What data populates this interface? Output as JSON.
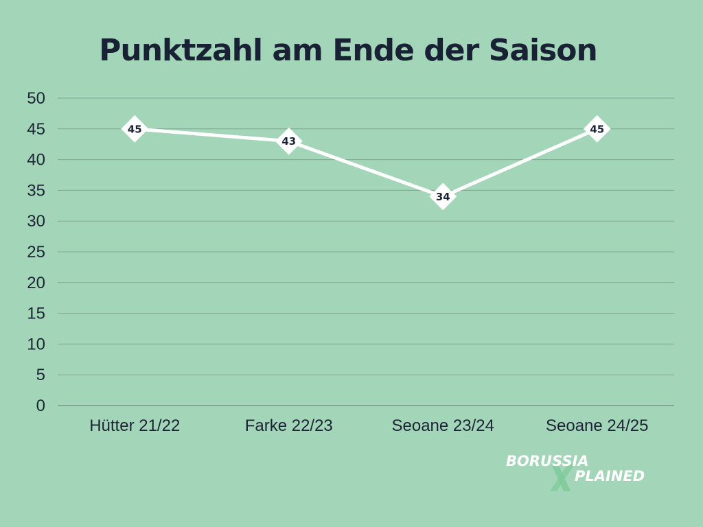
{
  "chart_data": {
    "type": "line",
    "title": "Punktzahl am Ende der Saison",
    "categories": [
      "Hütter 21/22",
      "Farke 22/23",
      "Seoane 23/24",
      "Seoane 24/25"
    ],
    "values": [
      45,
      43,
      34,
      45
    ],
    "data_labels": [
      "45",
      "43",
      "34",
      "45"
    ],
    "yticks": [
      "0",
      "5",
      "10",
      "15",
      "20",
      "25",
      "30",
      "35",
      "40",
      "45",
      "50"
    ],
    "ylim": [
      0,
      50
    ],
    "xlabel": "",
    "ylabel": "",
    "grid": true,
    "marker": "diamond",
    "colors": {
      "background": "#a3d5b9",
      "line": "#ffffff",
      "grid": "#7fa793",
      "text": "#1c2435",
      "title": "#182234",
      "logo_accent": "#7fcb9b"
    }
  },
  "logo": {
    "line1": "BORUSSIA",
    "line2": "PLAINED",
    "x_mark": "X"
  }
}
